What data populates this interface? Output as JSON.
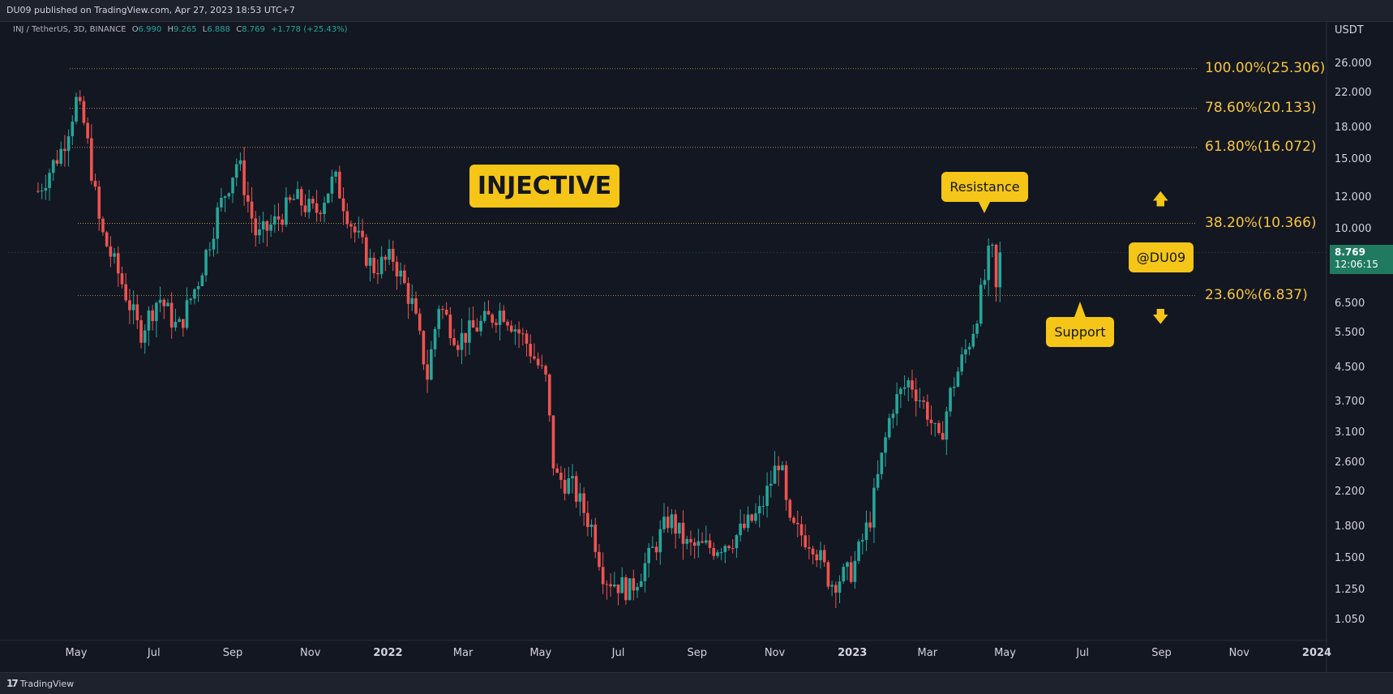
{
  "header": {
    "published": "DU09 published on TradingView.com, Apr 27, 2023 18:53 UTC+7"
  },
  "legend": {
    "symbol": "INJ / TetherUS, 3D, BINANCE",
    "o_label": "O",
    "o": "6.990",
    "h_label": "H",
    "h": "9.265",
    "l_label": "L",
    "l": "6.888",
    "c_label": "C",
    "c": "8.769",
    "change": "+1.778 (+25.43%)"
  },
  "annotations": {
    "title": "INJECTIVE",
    "resistance": "Resistance",
    "support": "Support",
    "handle": "@DU09"
  },
  "price_scale": {
    "unit": "USDT",
    "ticks": [
      "26.000",
      "22.000",
      "18.000",
      "15.000",
      "12.000",
      "10.000",
      "6.500",
      "5.500",
      "4.500",
      "3.700",
      "3.100",
      "2.600",
      "2.200",
      "1.800",
      "1.500",
      "1.250",
      "1.050"
    ],
    "current_price": "8.769",
    "countdown": "12:06:15"
  },
  "time_scale": {
    "ticks": [
      "May",
      "Jul",
      "Sep",
      "Nov",
      "2022",
      "Mar",
      "May",
      "Jul",
      "Sep",
      "Nov",
      "2023",
      "Mar",
      "May",
      "Jul",
      "Sep",
      "Nov",
      "2024"
    ]
  },
  "footer": {
    "brand": "TradingView"
  },
  "colors": {
    "up": "#26a69a",
    "down": "#ef5350",
    "fib": "#f5c542",
    "accent": "#f5c518",
    "background": "#131722"
  },
  "chart_data": {
    "type": "candlestick",
    "symbol": "INJ / TetherUS",
    "interval": "3D",
    "exchange": "BINANCE",
    "y_scale": "log",
    "ylim": [
      0.95,
      30
    ],
    "fib_levels": [
      {
        "label": "100.00%(25.306)",
        "value": 25.306
      },
      {
        "label": "78.60%(20.133)",
        "value": 20.133
      },
      {
        "label": "61.80%(16.072)",
        "value": 16.072
      },
      {
        "label": "38.20%(10.366)",
        "value": 10.366
      },
      {
        "label": "23.60%(6.837)",
        "value": 6.837
      }
    ],
    "price_path": [
      [
        "2021-04-01",
        12.5
      ],
      [
        "2021-04-20",
        16
      ],
      [
        "2021-05-01",
        21
      ],
      [
        "2021-05-08",
        18
      ],
      [
        "2021-05-20",
        10
      ],
      [
        "2021-06-05",
        7.5
      ],
      [
        "2021-06-20",
        5.5
      ],
      [
        "2021-07-05",
        6.8
      ],
      [
        "2021-07-20",
        5.6
      ],
      [
        "2021-08-05",
        7.5
      ],
      [
        "2021-08-20",
        11
      ],
      [
        "2021-09-05",
        15
      ],
      [
        "2021-09-20",
        9.5
      ],
      [
        "2021-10-05",
        10.5
      ],
      [
        "2021-10-20",
        12
      ],
      [
        "2021-11-05",
        11
      ],
      [
        "2021-11-20",
        13.5
      ],
      [
        "2021-12-05",
        10
      ],
      [
        "2021-12-20",
        8
      ],
      [
        "2022-01-05",
        8.5
      ],
      [
        "2022-01-20",
        6.5
      ],
      [
        "2022-02-01",
        4.3
      ],
      [
        "2022-02-10",
        6.5
      ],
      [
        "2022-02-25",
        5.3
      ],
      [
        "2022-03-15",
        5.8
      ],
      [
        "2022-04-01",
        6.3
      ],
      [
        "2022-04-20",
        5.2
      ],
      [
        "2022-05-05",
        4.2
      ],
      [
        "2022-05-12",
        2.4
      ],
      [
        "2022-05-25",
        2.3
      ],
      [
        "2022-06-10",
        1.8
      ],
      [
        "2022-06-20",
        1.35
      ],
      [
        "2022-07-10",
        1.25
      ],
      [
        "2022-07-25",
        1.5
      ],
      [
        "2022-08-10",
        1.9
      ],
      [
        "2022-08-25",
        1.6
      ],
      [
        "2022-09-15",
        1.6
      ],
      [
        "2022-10-01",
        1.7
      ],
      [
        "2022-10-20",
        1.95
      ],
      [
        "2022-11-05",
        2.7
      ],
      [
        "2022-11-12",
        1.8
      ],
      [
        "2022-12-01",
        1.65
      ],
      [
        "2022-12-15",
        1.3
      ],
      [
        "2023-01-01",
        1.4
      ],
      [
        "2023-01-15",
        1.9
      ],
      [
        "2023-02-01",
        3.6
      ],
      [
        "2023-02-15",
        4.2
      ],
      [
        "2023-03-01",
        3.5
      ],
      [
        "2023-03-10",
        2.9
      ],
      [
        "2023-03-20",
        4.0
      ],
      [
        "2023-04-05",
        5.5
      ],
      [
        "2023-04-15",
        7.5
      ],
      [
        "2023-04-20",
        9.3
      ],
      [
        "2023-04-24",
        7.0
      ],
      [
        "2023-04-27",
        8.769
      ]
    ]
  }
}
